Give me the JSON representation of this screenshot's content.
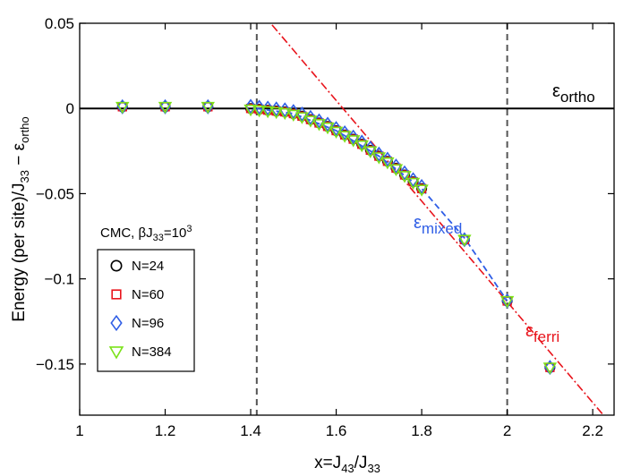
{
  "chart_data": {
    "type": "scatter",
    "xlabel": "x=J43/J33",
    "xlabel_parts": {
      "base": "x=J",
      "sub1": "43",
      "mid": "/J",
      "sub2": "33"
    },
    "ylabel": "Energy (per site)/J33 − εortho",
    "ylabel_parts": {
      "a": "Energy (per site)/J",
      "sub": "33",
      "b": " − ε",
      "sub2": "ortho"
    },
    "xlim": [
      1.0,
      2.25
    ],
    "ylim": [
      -0.18,
      0.05
    ],
    "xticks": [
      1,
      1.2,
      1.4,
      1.6,
      1.8,
      2,
      2.2
    ],
    "xtick_labels": [
      "1",
      "1.2",
      "1.4",
      "1.6",
      "1.8",
      "2",
      "2.2"
    ],
    "yticks": [
      -0.15,
      -0.1,
      -0.05,
      0,
      0.05
    ],
    "ytick_labels": [
      "−0.15",
      "−0.1",
      "−0.05",
      "0",
      "0.05"
    ],
    "vertical_dashed_lines": [
      1.4142,
      2.0
    ],
    "curves": {
      "ortho": {
        "label_base": "ε",
        "label_sub": "ortho",
        "value": 0,
        "color": "#000000"
      },
      "ferri": {
        "label_base": "ε",
        "label_sub": "ferri",
        "intercept": 0.4775,
        "slope": -0.2955,
        "color": "#e8141c"
      },
      "mixed": {
        "label_base": "ε",
        "label_sub": "mixed",
        "color": "#2f5ee6",
        "x": [
          1.4142,
          1.5,
          1.6,
          1.7,
          1.8,
          1.9,
          2.0
        ],
        "y": [
          0.0,
          -0.003,
          -0.013,
          -0.028,
          -0.047,
          -0.076,
          -0.113
        ]
      }
    },
    "legend": {
      "title_parts": {
        "a": "CMC, βJ",
        "sub": "33",
        "b": "=10",
        "sup": "3"
      },
      "position": "lower-left"
    },
    "series": [
      {
        "name": "N=24",
        "marker": "circle",
        "color": "#000000"
      },
      {
        "name": "N=60",
        "marker": "square",
        "color": "#e8141c"
      },
      {
        "name": "N=96",
        "marker": "diamond",
        "color": "#2f5ee6"
      },
      {
        "name": "N=384",
        "marker": "triangle-down",
        "color": "#7be21a"
      }
    ],
    "points": {
      "x": [
        1.1,
        1.2,
        1.3,
        1.4,
        1.42,
        1.44,
        1.46,
        1.48,
        1.5,
        1.52,
        1.54,
        1.56,
        1.58,
        1.6,
        1.62,
        1.64,
        1.66,
        1.68,
        1.7,
        1.72,
        1.74,
        1.76,
        1.78,
        1.8,
        1.9,
        2.0,
        2.1
      ],
      "y": [
        0.001,
        0.001,
        0.001,
        0.0,
        -0.0005,
        -0.001,
        -0.0015,
        -0.002,
        -0.003,
        -0.0045,
        -0.0065,
        -0.0085,
        -0.0105,
        -0.013,
        -0.0155,
        -0.018,
        -0.021,
        -0.0245,
        -0.028,
        -0.031,
        -0.035,
        -0.039,
        -0.043,
        -0.047,
        -0.077,
        -0.113,
        -0.152
      ]
    }
  }
}
